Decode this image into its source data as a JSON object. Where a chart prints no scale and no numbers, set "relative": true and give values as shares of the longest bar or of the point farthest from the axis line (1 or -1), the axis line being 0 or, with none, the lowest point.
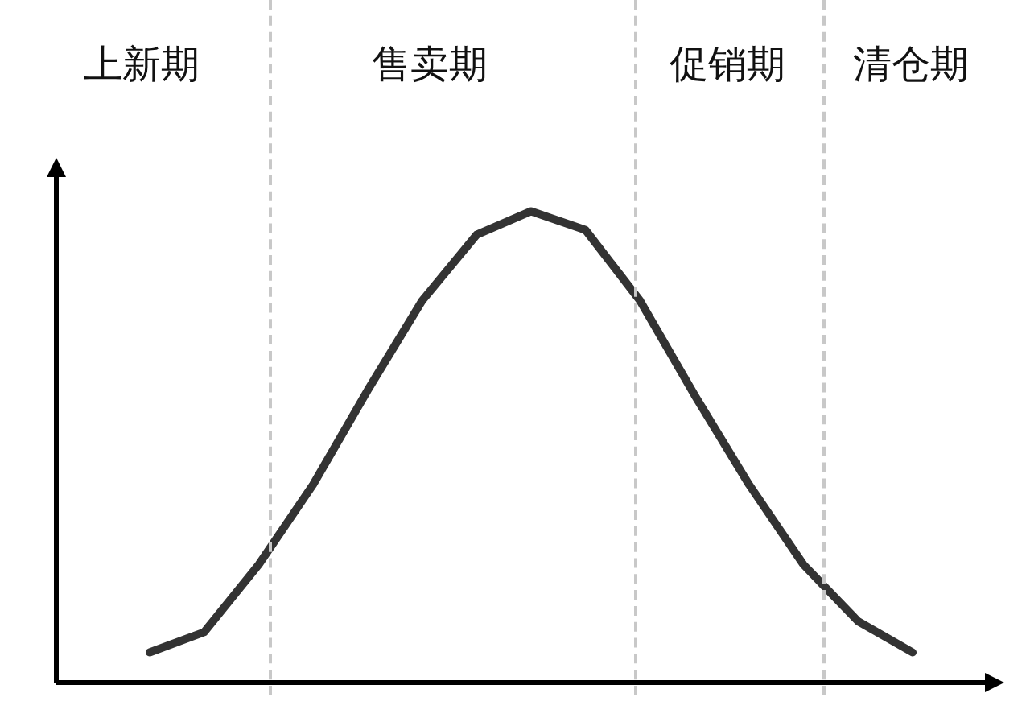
{
  "chart_data": {
    "type": "line",
    "relative": true,
    "line_style": "solid",
    "categories": [
      null,
      null,
      null,
      null,
      null,
      null,
      null,
      null,
      null,
      null,
      null,
      null,
      null,
      null,
      null
    ],
    "series": [
      {
        "color": "#333333",
        "values": [
          0.064,
          0.107,
          0.25,
          0.42,
          0.62,
          0.81,
          0.95,
          1,
          0.96,
          0.81,
          0.61,
          0.42,
          0.25,
          0.13,
          0.064
        ]
      }
    ],
    "annotations": [
      "上新期",
      "售卖期",
      "促销期",
      "清仓期"
    ]
  }
}
